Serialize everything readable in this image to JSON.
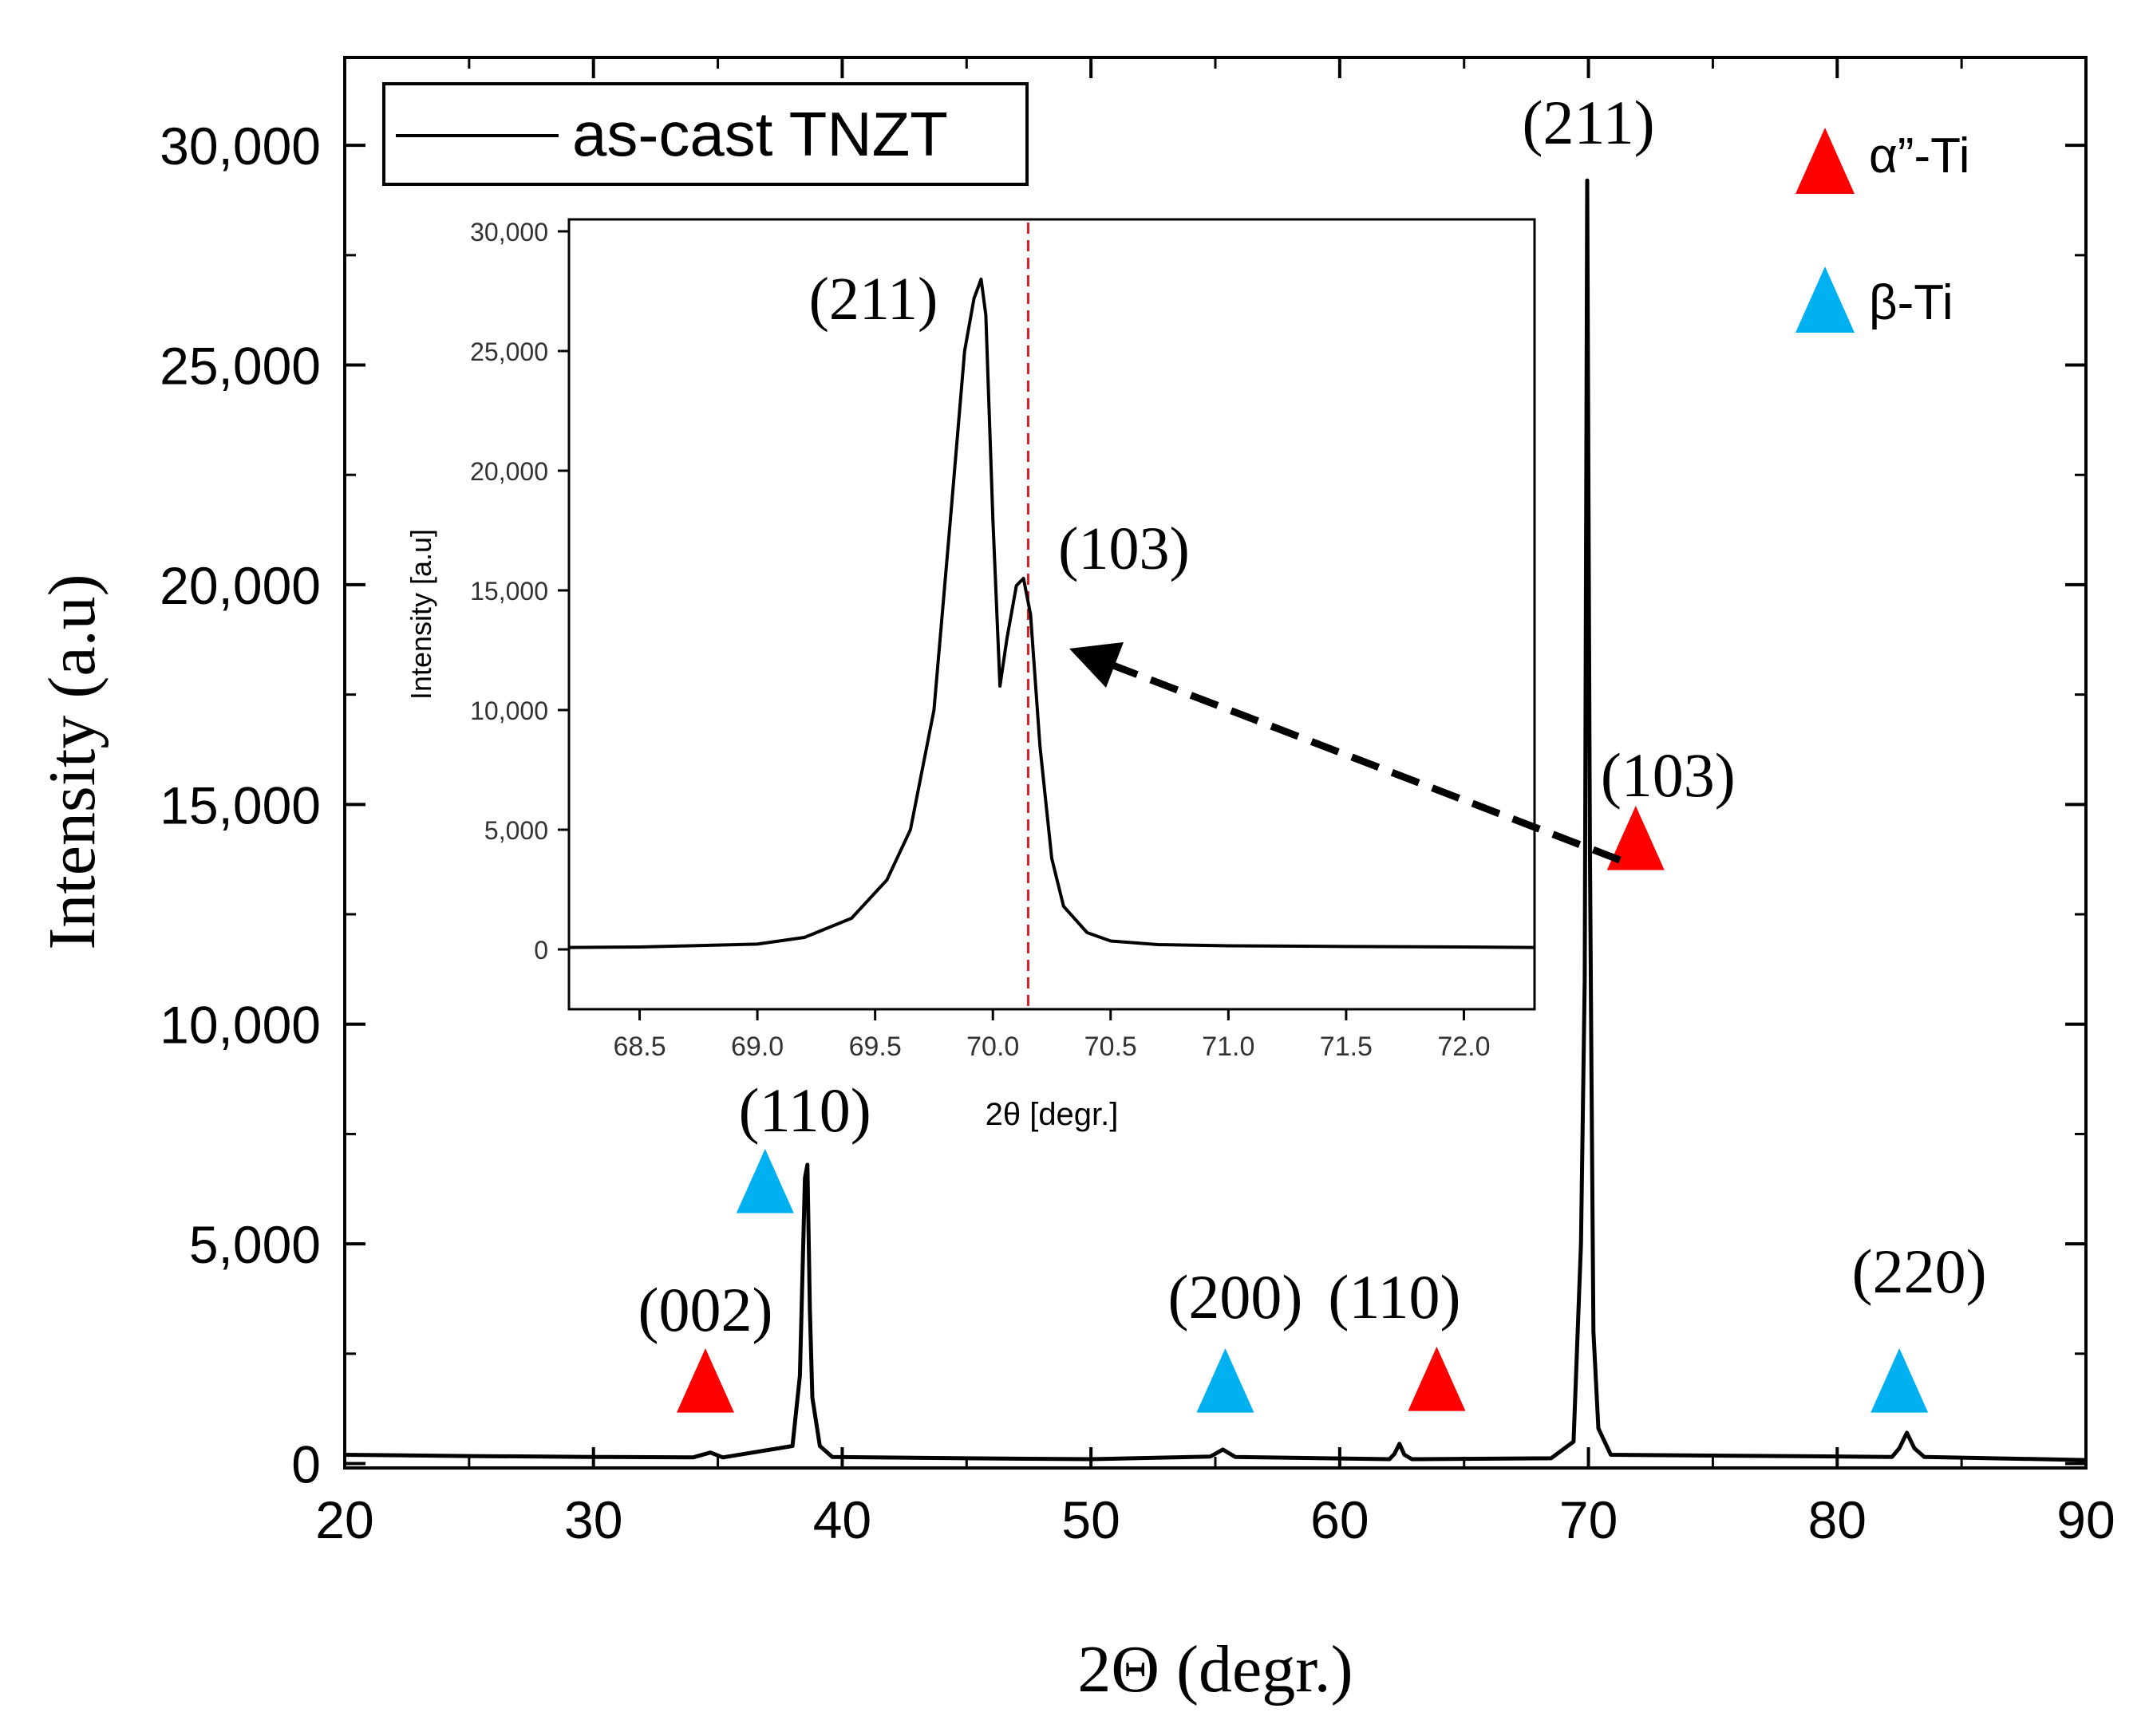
{
  "colors": {
    "alpha_marker": "#ff0000",
    "beta_marker": "#00b0f0",
    "line": "#000000",
    "guide": "#e02020"
  },
  "legend": {
    "series_label": "as-cast TNZT",
    "alpha_label": "α”-Ti",
    "beta_label": "β-Ti"
  },
  "chart_data": [
    {
      "id": "main",
      "type": "line",
      "title": "",
      "xlabel": "2Θ (degr.)",
      "ylabel": "Intensity (a.u)",
      "xlim": [
        20,
        90
      ],
      "ylim": [
        -100,
        32000
      ],
      "xticks": [
        20,
        30,
        40,
        50,
        60,
        70,
        80,
        90
      ],
      "xtick_labels": [
        "20",
        "30",
        "40",
        "50",
        "60",
        "70",
        "80",
        "90"
      ],
      "yticks": [
        0,
        5000,
        10000,
        15000,
        20000,
        25000,
        30000
      ],
      "ytick_labels": [
        "0",
        "5,000",
        "10,000",
        "15,000",
        "20,000",
        "25,000",
        "30,000"
      ],
      "series": [
        {
          "name": "as-cast TNZT",
          "x": [
            20,
            25,
            30,
            34,
            34.7,
            35.2,
            38,
            38.3,
            38.5,
            38.6,
            38.7,
            38.8,
            39.1,
            39.6,
            45,
            50,
            54.8,
            55.3,
            55.8,
            62,
            62.2,
            62.4,
            62.6,
            62.9,
            68.5,
            69.4,
            69.7,
            69.85,
            69.95,
            70.0,
            70.06,
            70.12,
            70.2,
            70.4,
            70.9,
            82.2,
            82.5,
            82.8,
            83.1,
            83.5,
            90
          ],
          "y": [
            200,
            170,
            150,
            140,
            250,
            140,
            400,
            2000,
            6500,
            6800,
            3500,
            1500,
            400,
            150,
            120,
            100,
            160,
            320,
            150,
            100,
            220,
            450,
            200,
            100,
            120,
            500,
            5000,
            11000,
            29200,
            22000,
            14000,
            9000,
            3000,
            800,
            200,
            150,
            350,
            700,
            350,
            150,
            80
          ]
        }
      ],
      "peak_labels": [
        {
          "text": "(002)",
          "x": 34.5,
          "phase": "alpha"
        },
        {
          "text": "(110)",
          "x": 36.9,
          "phase": "beta"
        },
        {
          "text": "(200)",
          "x": 55.4,
          "phase": "beta"
        },
        {
          "text": "(110)",
          "x": 63.9,
          "phase": "alpha"
        },
        {
          "text": "(211)",
          "x": 70.0,
          "phase": "none"
        },
        {
          "text": "(103)",
          "x": 71.9,
          "phase": "alpha"
        },
        {
          "text": "(220)",
          "x": 82.5,
          "phase": "beta"
        }
      ]
    },
    {
      "id": "inset",
      "type": "line",
      "title": "",
      "xlabel": "2θ [degr.]",
      "ylabel": "Intensity [a.u]",
      "xlim": [
        68.2,
        72.3
      ],
      "ylim": [
        -2500,
        30500
      ],
      "xticks": [
        68.5,
        69.0,
        69.5,
        70.0,
        70.5,
        71.0,
        71.5,
        72.0
      ],
      "xtick_labels": [
        "68.5",
        "69.0",
        "69.5",
        "70.0",
        "70.5",
        "71.0",
        "71.5",
        "72.0"
      ],
      "yticks": [
        0,
        5000,
        10000,
        15000,
        20000,
        25000,
        30000
      ],
      "ytick_labels": [
        "0",
        "5,000",
        "10,000",
        "15,000",
        "20,000",
        "25,000",
        "30,000"
      ],
      "guide_x": 70.15,
      "series": [
        {
          "name": "as-cast TNZT",
          "x": [
            68.2,
            68.5,
            69.0,
            69.2,
            69.4,
            69.55,
            69.65,
            69.75,
            69.82,
            69.88,
            69.92,
            69.95,
            69.97,
            70.0,
            70.03,
            70.06,
            70.1,
            70.13,
            70.16,
            70.2,
            70.25,
            70.3,
            70.4,
            70.5,
            70.7,
            71.0,
            71.5,
            72.0,
            72.3
          ],
          "y": [
            80,
            100,
            220,
            500,
            1300,
            2900,
            5000,
            10000,
            18000,
            25000,
            27200,
            28000,
            26500,
            18000,
            11000,
            13000,
            15200,
            15500,
            14000,
            8500,
            3800,
            1800,
            700,
            350,
            200,
            150,
            120,
            100,
            80
          ]
        }
      ],
      "peak_labels": [
        {
          "text": "(211)",
          "x": 69.95
        },
        {
          "text": "(103)",
          "x": 70.15
        }
      ]
    }
  ]
}
